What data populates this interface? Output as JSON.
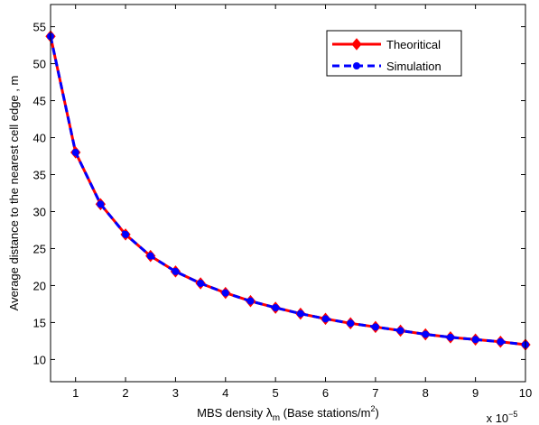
{
  "chart_data": {
    "type": "line",
    "xlabel": {
      "prefix": "MBS density ",
      "symbol": "λ",
      "symbol_sub": "m",
      "middle": " (Base stations/m",
      "sup": "2",
      "suffix": ")"
    },
    "ylabel": "Average distance to the nearest cell edge , m",
    "x_multiplier": {
      "base": "x 10",
      "exponent": "−5"
    },
    "xlim": [
      0.5,
      10
    ],
    "ylim": [
      7,
      58
    ],
    "xticks": [
      1,
      2,
      3,
      4,
      5,
      6,
      7,
      8,
      9,
      10
    ],
    "yticks": [
      10,
      15,
      20,
      25,
      30,
      35,
      40,
      45,
      50,
      55
    ],
    "legend_position": "top-right",
    "x": [
      0.5,
      1,
      1.5,
      2,
      2.5,
      3,
      3.5,
      4,
      4.5,
      5,
      5.5,
      6,
      6.5,
      7,
      7.5,
      8,
      8.5,
      9,
      9.5,
      10
    ],
    "series": [
      {
        "name": "Theoritical",
        "color": "#ff0000",
        "line_style": "solid",
        "marker": "diamond",
        "values": [
          53.7,
          38.0,
          31.0,
          26.9,
          24.0,
          21.9,
          20.3,
          19.0,
          17.9,
          17.0,
          16.2,
          15.5,
          14.9,
          14.4,
          13.9,
          13.4,
          13.0,
          12.7,
          12.4,
          12.0
        ]
      },
      {
        "name": "Simulation",
        "color": "#0000ff",
        "line_style": "dashed",
        "marker": "circle",
        "values": [
          53.7,
          38.0,
          31.0,
          26.9,
          24.0,
          21.9,
          20.3,
          19.0,
          17.9,
          17.0,
          16.2,
          15.5,
          14.9,
          14.4,
          13.9,
          13.4,
          13.0,
          12.7,
          12.4,
          12.0
        ]
      }
    ]
  }
}
